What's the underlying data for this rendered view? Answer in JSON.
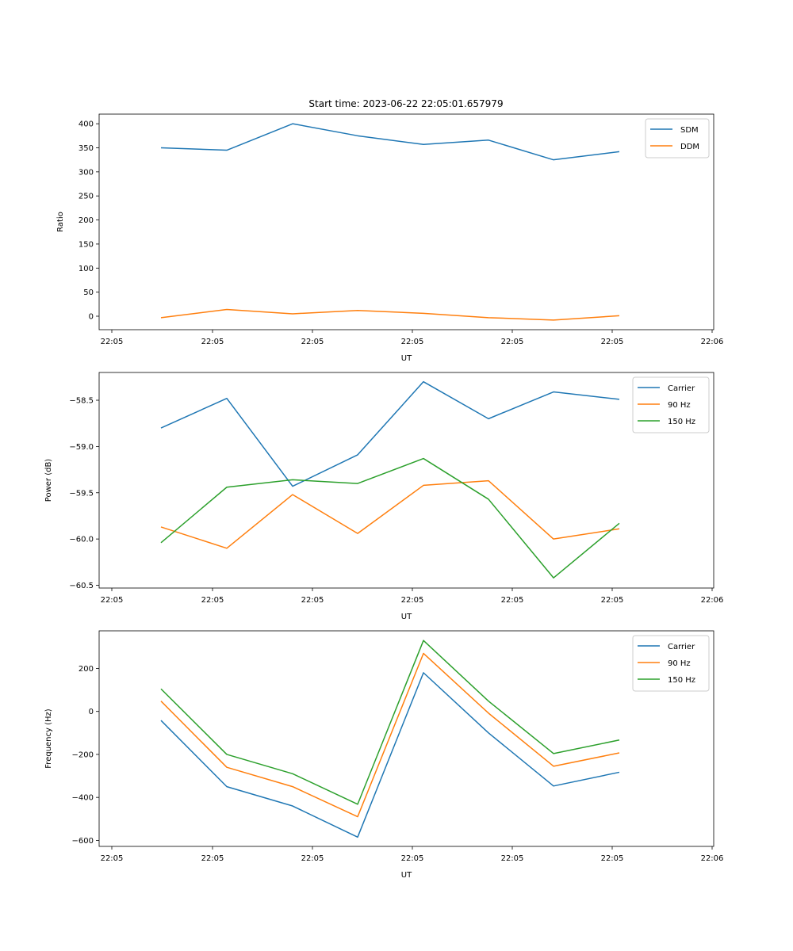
{
  "figure": {
    "title": "Start time: 2023-06-22 22:05:01.657979"
  },
  "chart_data": [
    {
      "type": "line",
      "title": "Start time: 2023-06-22 22:05:01.657979",
      "xlabel": "UT",
      "ylabel": "Ratio",
      "x_tick_labels": [
        "22:05",
        "22:05",
        "22:05",
        "22:05",
        "22:05",
        "22:05",
        "22:06"
      ],
      "yticks": [
        0,
        50,
        100,
        150,
        200,
        250,
        300,
        350,
        400
      ],
      "ylim": [
        -28,
        420
      ],
      "legend_position": "upper right",
      "grid": false,
      "series": [
        {
          "name": "SDM",
          "color": "#1f77b4",
          "values": [
            350,
            345,
            400,
            375,
            357,
            366,
            325,
            342
          ]
        },
        {
          "name": "DDM",
          "color": "#ff7f0e",
          "values": [
            -3,
            14,
            5,
            12,
            6,
            -3,
            -8,
            1
          ]
        }
      ]
    },
    {
      "type": "line",
      "title": "",
      "xlabel": "UT",
      "ylabel": "Power (dB)",
      "x_tick_labels": [
        "22:05",
        "22:05",
        "22:05",
        "22:05",
        "22:05",
        "22:05",
        "22:06"
      ],
      "yticks": [
        -60.5,
        -60.0,
        -59.5,
        -59.0,
        -58.5
      ],
      "ylim": [
        -60.53,
        -58.2
      ],
      "legend_position": "upper right",
      "grid": false,
      "series": [
        {
          "name": "Carrier",
          "color": "#1f77b4",
          "values": [
            -58.8,
            -58.48,
            -59.43,
            -59.09,
            -58.3,
            -58.7,
            -58.41,
            -58.49
          ]
        },
        {
          "name": "90 Hz",
          "color": "#ff7f0e",
          "values": [
            -59.87,
            -60.1,
            -59.52,
            -59.94,
            -59.42,
            -59.37,
            -60.0,
            -59.89
          ]
        },
        {
          "name": "150 Hz",
          "color": "#2ca02c",
          "values": [
            -60.04,
            -59.44,
            -59.36,
            -59.4,
            -59.13,
            -59.57,
            -60.42,
            -59.83
          ]
        }
      ]
    },
    {
      "type": "line",
      "title": "",
      "xlabel": "UT",
      "ylabel": "Frequency (Hz)",
      "x_tick_labels": [
        "22:05",
        "22:05",
        "22:05",
        "22:05",
        "22:05",
        "22:05",
        "22:06"
      ],
      "yticks": [
        -600,
        -400,
        -200,
        0,
        200
      ],
      "ylim": [
        -628,
        375
      ],
      "legend_position": "upper right",
      "grid": false,
      "series": [
        {
          "name": "Carrier",
          "color": "#1f77b4",
          "values": [
            -42,
            -350,
            -440,
            -585,
            180,
            -100,
            -347,
            -283
          ]
        },
        {
          "name": "90 Hz",
          "color": "#ff7f0e",
          "values": [
            48,
            -260,
            -350,
            -490,
            270,
            -8,
            -255,
            -193
          ]
        },
        {
          "name": "150 Hz",
          "color": "#2ca02c",
          "values": [
            105,
            -200,
            -290,
            -432,
            330,
            48,
            -196,
            -133
          ]
        }
      ]
    }
  ]
}
